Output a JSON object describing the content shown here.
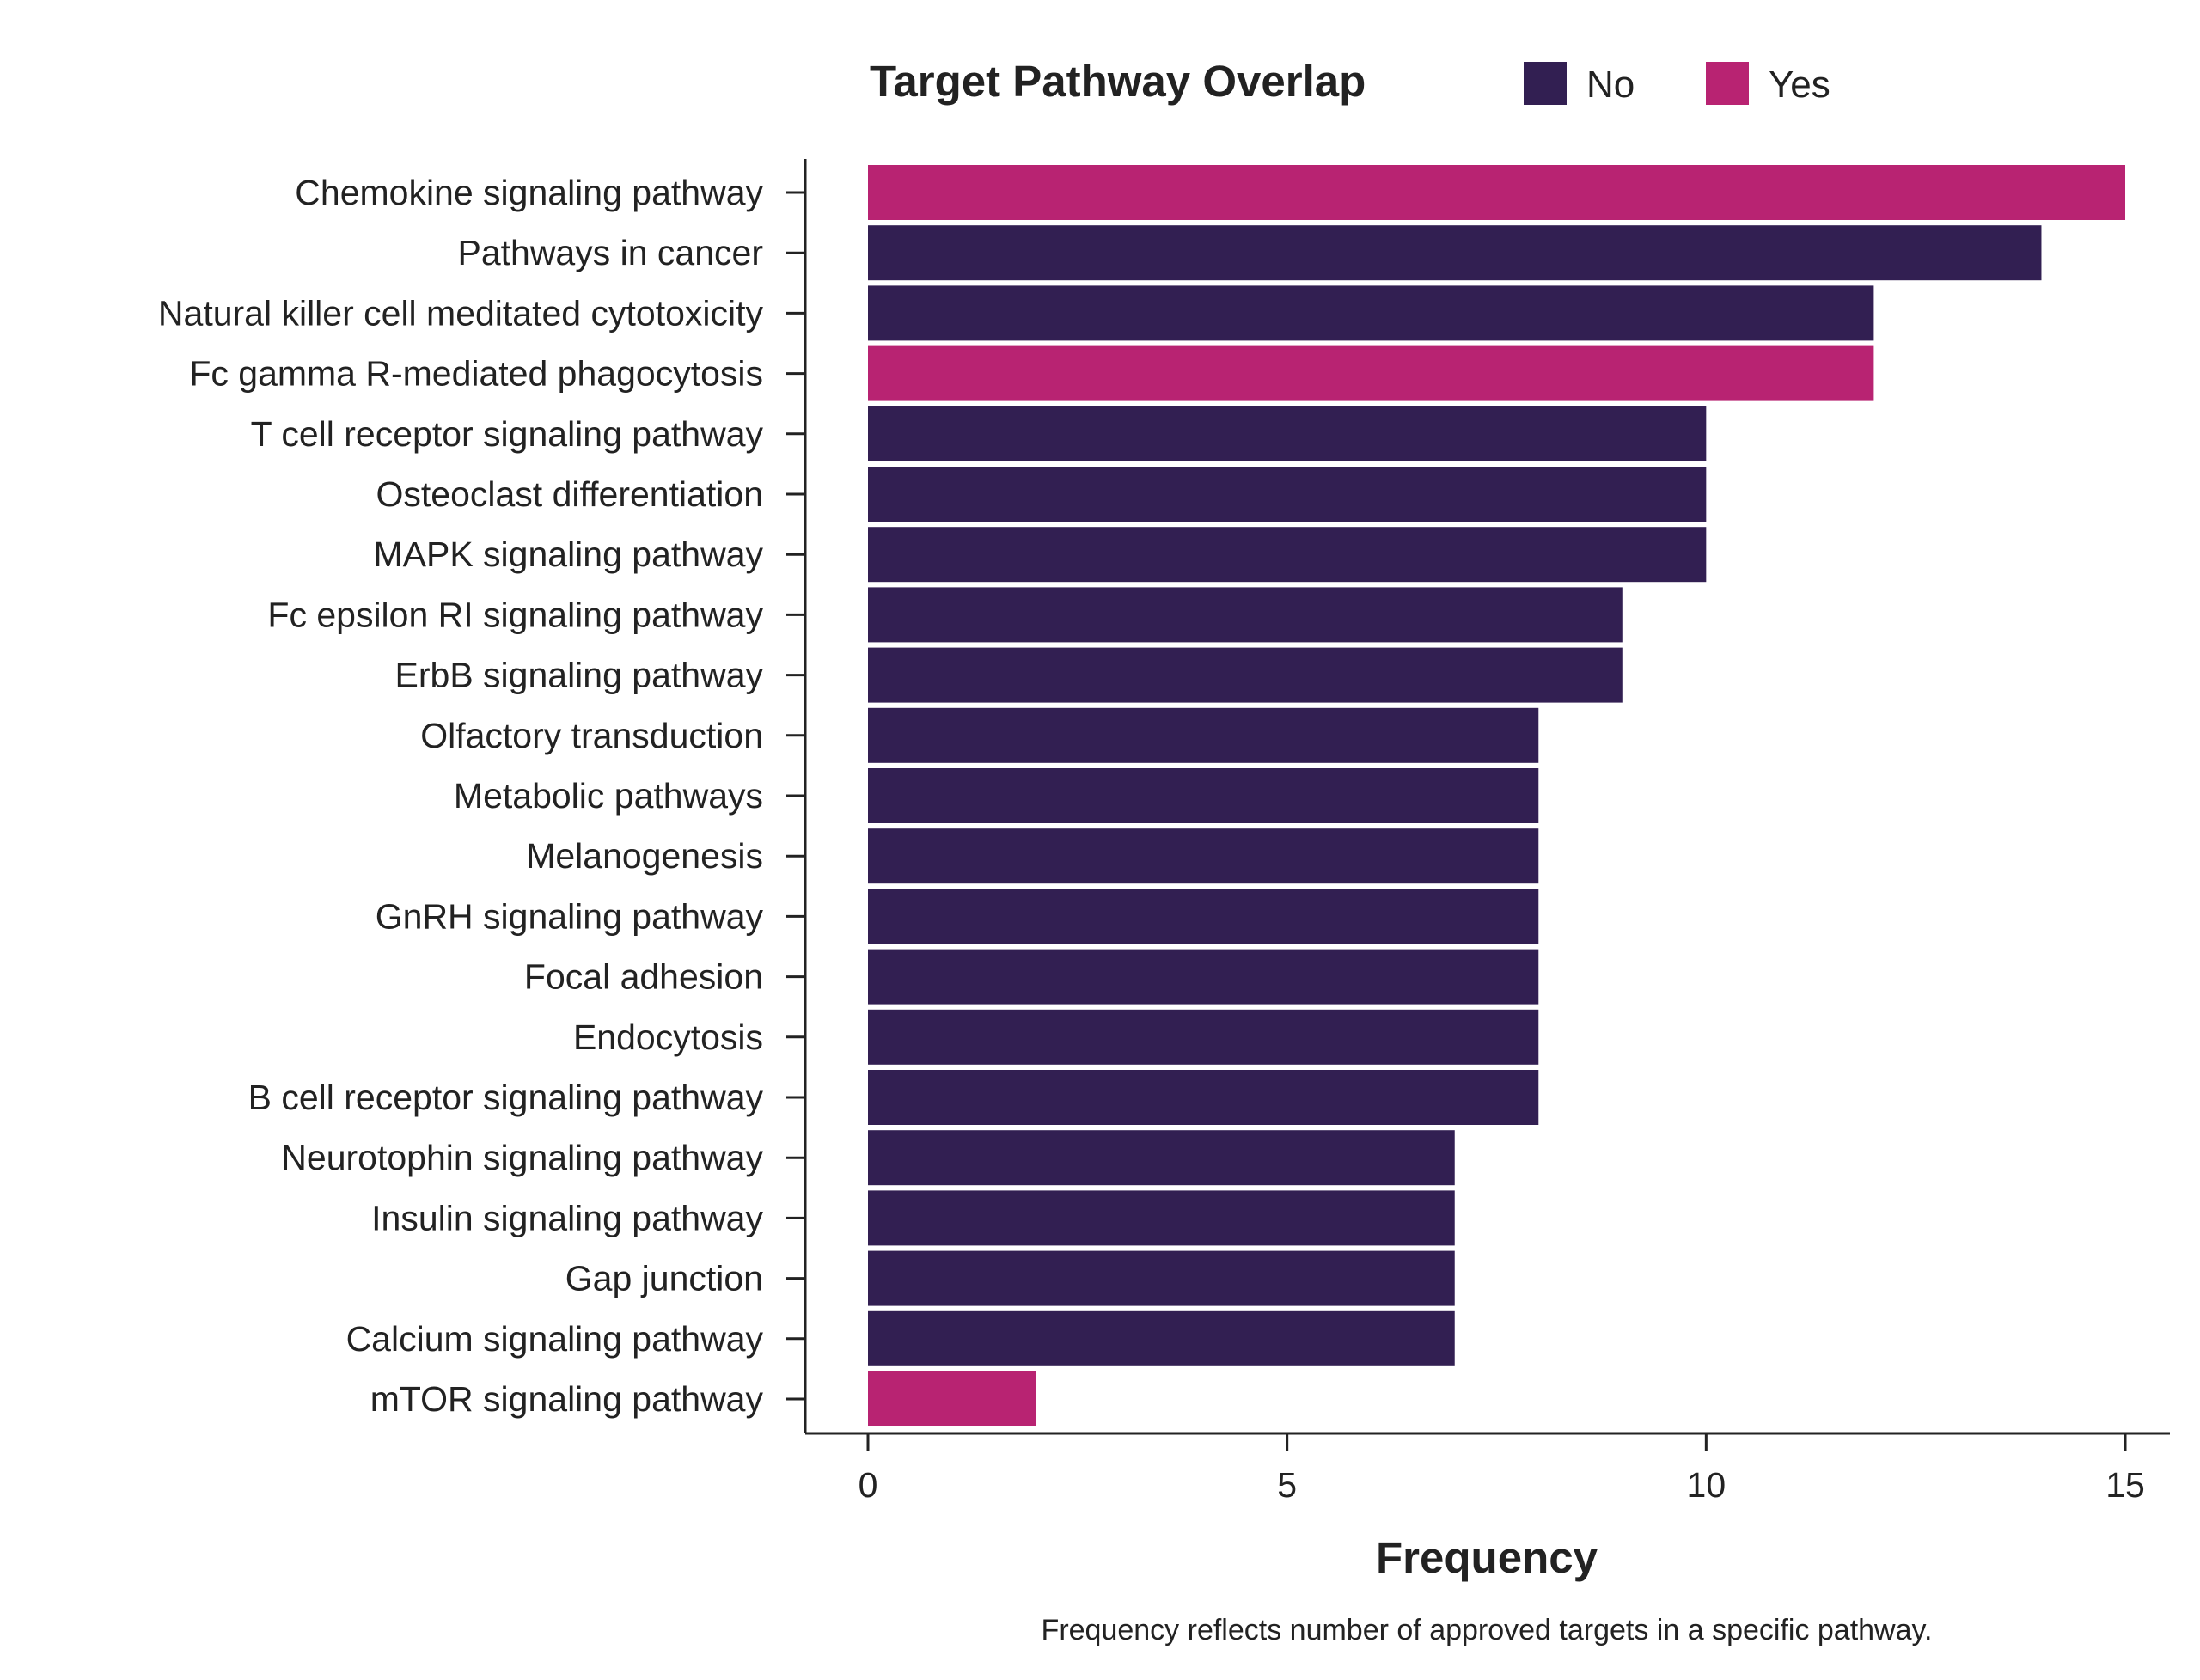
{
  "chart_data": {
    "type": "bar",
    "orientation": "horizontal",
    "legend": {
      "title": "Target Pathway Overlap",
      "entries": [
        {
          "name": "No",
          "color": "#321F52"
        },
        {
          "name": "Yes",
          "color": "#B82372"
        }
      ],
      "placement": "top"
    },
    "categories": [
      "Chemokine signaling pathway",
      "Pathways in cancer",
      "Natural killer cell meditated cytotoxicity",
      "Fc gamma R-mediated phagocytosis",
      "T cell receptor signaling pathway",
      "Osteoclast differentiation",
      "MAPK signaling pathway",
      "Fc epsilon RI signaling pathway",
      "ErbB signaling pathway",
      "Olfactory transduction",
      "Metabolic pathways",
      "Melanogenesis",
      "GnRH signaling pathway",
      "Focal adhesion",
      "Endocytosis",
      "B cell receptor signaling pathway",
      "Neurotophin signaling pathway",
      "Insulin signaling pathway",
      "Gap junction",
      "Calcium signaling pathway",
      "mTOR signaling pathway"
    ],
    "values": [
      15,
      14,
      12,
      12,
      10,
      10,
      10,
      9,
      9,
      8,
      8,
      8,
      8,
      8,
      8,
      8,
      7,
      7,
      7,
      7,
      2
    ],
    "overlap": [
      "Yes",
      "No",
      "No",
      "Yes",
      "No",
      "No",
      "No",
      "No",
      "No",
      "No",
      "No",
      "No",
      "No",
      "No",
      "No",
      "No",
      "No",
      "No",
      "No",
      "No",
      "Yes"
    ],
    "xlabel": "Frequency",
    "xlim": [
      0,
      15
    ],
    "xticks": [
      0,
      5,
      10,
      15
    ],
    "grid": false,
    "caption": "Frequency reflects number of approved targets in a specific pathway."
  }
}
